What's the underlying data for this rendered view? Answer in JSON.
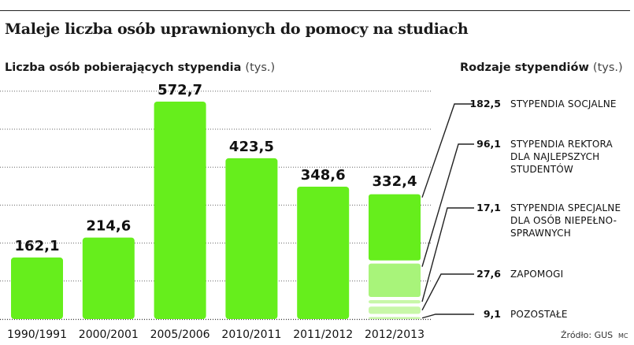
{
  "title": "Maleje liczba osób uprawnionych do pomocy na studiach",
  "left_panel": {
    "label": "Liczba osób pobierających stypendia",
    "unit": "(tys.)"
  },
  "right_panel": {
    "label": "Rodzaje stypendiów",
    "unit": "(tys.)"
  },
  "source": "Źródło: GUS",
  "signature": "MC",
  "colors": {
    "bar": "#66ee1c",
    "seg_light_1": "#a8f47a",
    "seg_light_2": "#c8f7a8",
    "grid": "#666666"
  },
  "chart_data": [
    {
      "type": "bar",
      "title": "",
      "categories": [
        "1990/1991",
        "2000/2001",
        "2005/2006",
        "2010/2011",
        "2011/2012",
        "2012/2013"
      ],
      "values": [
        162.1,
        214.6,
        572.7,
        423.5,
        348.6,
        332.4
      ],
      "value_labels": [
        "162,1",
        "214,6",
        "572,7",
        "423,5",
        "348,6",
        "332,4"
      ],
      "ylabel": "Liczba osób pobierających stypendia (tys.)",
      "ylim": [
        0,
        600
      ],
      "grid": true,
      "grid_step": 100
    },
    {
      "type": "bar",
      "stacked": true,
      "category": "2012/2013",
      "title": "Rodzaje stypendiów (tys.)",
      "segments": [
        {
          "name_lines": [
            "STYPENDIA SOCJALNE"
          ],
          "value": 182.5,
          "value_label": "182,5"
        },
        {
          "name_lines": [
            "STYPENDIA REKTORA",
            "DLA NAJLEPSZYCH",
            "STUDENTÓW"
          ],
          "value": 96.1,
          "value_label": "96,1"
        },
        {
          "name_lines": [
            "STYPENDIA SPECJALNE",
            "DLA OSÓB NIEPEŁNO-",
            "SPRAWNYCH"
          ],
          "value": 17.1,
          "value_label": "17,1"
        },
        {
          "name_lines": [
            "ZAPOMOGI"
          ],
          "value": 27.6,
          "value_label": "27,6"
        },
        {
          "name_lines": [
            "POZOSTAŁE"
          ],
          "value": 9.1,
          "value_label": "9,1"
        }
      ]
    }
  ]
}
